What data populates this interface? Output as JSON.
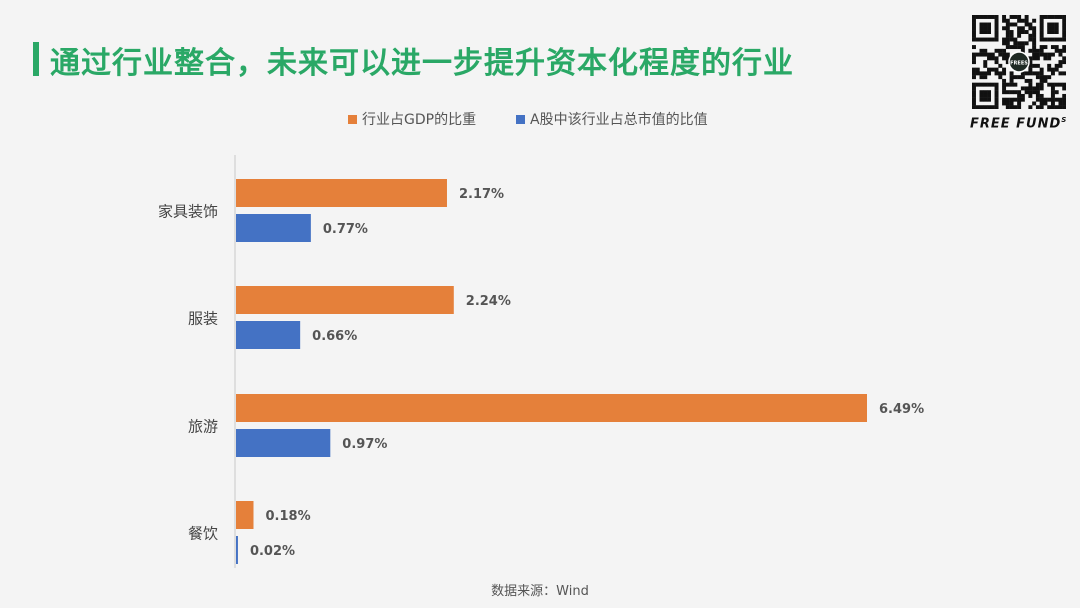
{
  "page": {
    "title": "通过行业整合，未来可以进一步提升资本化程度的行业",
    "source": "数据来源：Wind",
    "brand": "FREE FUND",
    "brand_sup": "S",
    "qr_label": "FREES"
  },
  "colors": {
    "accent": "#2aa866",
    "series_gdp": "#e5803a",
    "series_mktcap": "#4472c4"
  },
  "chart_data": {
    "type": "bar",
    "orientation": "horizontal",
    "categories": [
      "家具装饰",
      "服装",
      "旅游",
      "餐饮"
    ],
    "series": [
      {
        "name": "行业占GDP的比重",
        "values": [
          2.17,
          2.24,
          6.49,
          0.18
        ],
        "labels": [
          "2.17%",
          "2.24%",
          "6.49%",
          "0.18%"
        ]
      },
      {
        "name": "A股中该行业占总市值的比值",
        "values": [
          0.77,
          0.66,
          0.97,
          0.02
        ],
        "labels": [
          "0.77%",
          "0.66%",
          "0.97%",
          "0.02%"
        ]
      }
    ],
    "unit": "%",
    "xlim": [
      0,
      6.49
    ],
    "legend_position": "top",
    "grid": false
  }
}
